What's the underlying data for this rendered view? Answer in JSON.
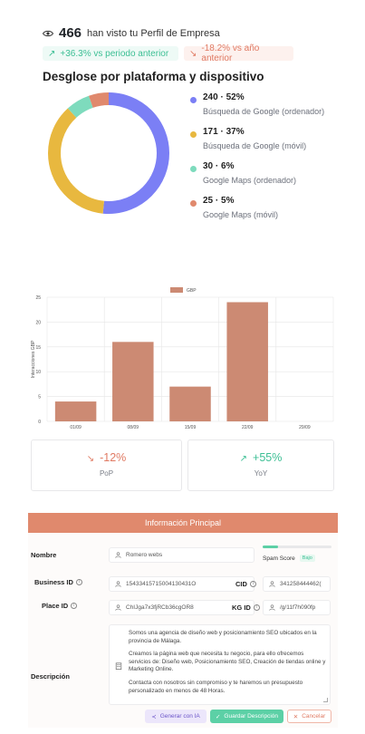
{
  "summary": {
    "views_count": "466",
    "views_text": "han visto tu Perfil de Empresa",
    "up_badge": "+36.3% vs periodo anterior",
    "down_badge": "-18.2% vs año anterior"
  },
  "breakdown": {
    "title": "Desglose por plataforma y dispositivo",
    "items": [
      {
        "value": "240 · 52%",
        "label": "Búsqueda de Google (ordenador)",
        "count": 240,
        "color": "#7b7ff5"
      },
      {
        "value": "171 · 37%",
        "label": "Búsqueda de Google (móvil)",
        "count": 171,
        "color": "#e8b83f"
      },
      {
        "value": "30 · 6%",
        "label": "Google Maps (ordenador)",
        "count": 30,
        "color": "#7edbbd"
      },
      {
        "value": "25 · 5%",
        "label": "Google Maps (móvil)",
        "count": 25,
        "color": "#e0896d"
      }
    ]
  },
  "chart_data": {
    "type": "bar",
    "categories": [
      "01/09",
      "08/09",
      "15/09",
      "22/09",
      "29/09"
    ],
    "series": [
      {
        "name": "GBP",
        "values": [
          4,
          16,
          7,
          24,
          0
        ],
        "color": "#cc8a73"
      }
    ],
    "ylabel": "Interacciones GBP",
    "xlabel": "",
    "ylim": [
      0,
      25
    ],
    "yticks": [
      0,
      5,
      10,
      15,
      20,
      25
    ],
    "legend": "top-center",
    "grid": true
  },
  "comparison": {
    "pop_value": "-12%",
    "pop_label": "PoP",
    "yoy_value": "+55%",
    "yoy_label": "YoY"
  },
  "form": {
    "header": "Información Principal",
    "name_label": "Nombre",
    "name_value": "Romero webs",
    "spam_label": "Spam Score",
    "spam_tag": "Bajo",
    "spam_level": 0.22,
    "business_id_label": "Business ID",
    "business_id_value": "15433415715004130431O",
    "cid_label": "CID",
    "cid_value": "341258444462(",
    "place_id_label": "Place ID",
    "place_id_value": "ChIJga7x3fjRCb36cgOR8",
    "kg_id_label": "KG ID",
    "kg_id_value": "/g/11f7h090fp",
    "description_label": "Descripción",
    "description_p1": "Somos una agencia de diseño web y posicionamiento SEO ubicados en la provincia de Málaga.",
    "description_p2": "Creamos la página web que necesita tu negocio, para ello ofrecemos servicios de: Diseño web, Posicionamiento SEO, Creación de tiendas online y Marketing Online.",
    "description_p3": "Contacta con nosotros sin compromiso y te haremos un presupuesto personalizado en menos de 48 Horas.",
    "btn_ai": "Generar con IA",
    "btn_save": "Guardar Descripción",
    "btn_cancel": "Cancelar"
  }
}
